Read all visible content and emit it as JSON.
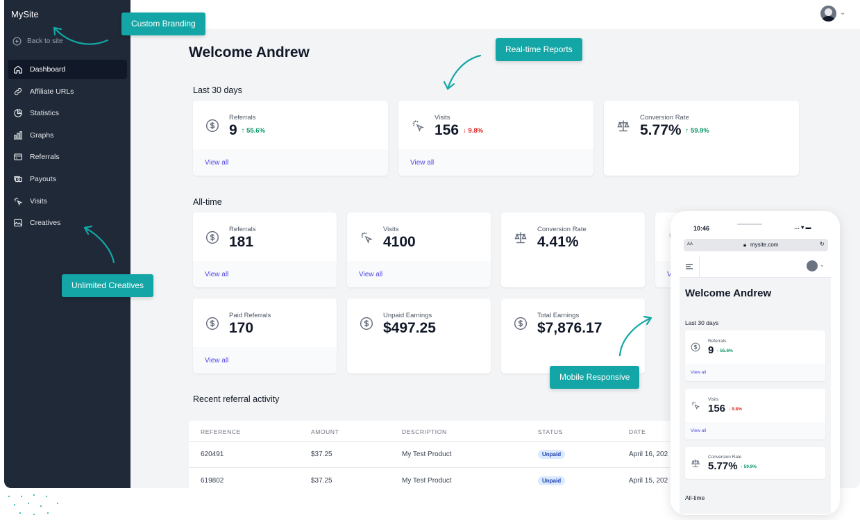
{
  "sidebar": {
    "brand": "MySite",
    "back_label": "Back to site",
    "items": [
      {
        "label": "Dashboard",
        "icon": "home-icon",
        "active": true
      },
      {
        "label": "Affiliate URLs",
        "icon": "link-icon"
      },
      {
        "label": "Statistics",
        "icon": "pie-chart-icon"
      },
      {
        "label": "Graphs",
        "icon": "bar-chart-icon"
      },
      {
        "label": "Referrals",
        "icon": "credit-card-icon"
      },
      {
        "label": "Payouts",
        "icon": "cash-icon"
      },
      {
        "label": "Visits",
        "icon": "cursor-click-icon"
      },
      {
        "label": "Creatives",
        "icon": "image-icon"
      }
    ]
  },
  "header": {
    "avatar": "user-avatar",
    "chevron": "⌄"
  },
  "main": {
    "title": "Welcome Andrew",
    "last30": {
      "title": "Last 30 days",
      "cards": [
        {
          "label": "Referrals",
          "value": "9",
          "change": "55.6%",
          "dir": "up",
          "link": "View all"
        },
        {
          "label": "Visits",
          "value": "156",
          "change": "9.8%",
          "dir": "down",
          "link": "View all"
        },
        {
          "label": "Conversion Rate",
          "value": "5.77%",
          "change": "59.9%",
          "dir": "up"
        }
      ]
    },
    "alltime": {
      "title": "All-time",
      "cards": [
        {
          "label": "Referrals",
          "value": "181",
          "link": "View all"
        },
        {
          "label": "Visits",
          "value": "4100",
          "link": "View all"
        },
        {
          "label": "Conversion Rate",
          "value": "4.41%"
        },
        {
          "label": "Paid Referrals",
          "value": "170",
          "link": "View all"
        },
        {
          "label": "Unpaid Earnings",
          "value": "$497.25"
        },
        {
          "label": "Total Earnings",
          "value": "$7,876.17"
        }
      ]
    },
    "recent": {
      "title": "Recent referral activity",
      "columns": [
        "REFERENCE",
        "AMOUNT",
        "DESCRIPTION",
        "STATUS",
        "DATE"
      ],
      "rows": [
        {
          "reference": "620491",
          "amount": "$37.25",
          "description": "My Test Product",
          "status": "Unpaid",
          "date": "April 16, 202"
        },
        {
          "reference": "619802",
          "amount": "$37.25",
          "description": "My Test Product",
          "status": "Unpaid",
          "date": "April 15, 202"
        }
      ]
    }
  },
  "callouts": {
    "branding": "Custom Branding",
    "reports": "Real-time Reports",
    "creatives": "Unlimited Creatives",
    "mobile": "Mobile Responsive"
  },
  "phone": {
    "time": "10:46",
    "aa": "AA",
    "url": "mysite.com",
    "title": "Welcome Andrew",
    "section": "Last 30 days",
    "section2": "All-time",
    "partial_link": "V",
    "cards": [
      {
        "label": "Referrals",
        "value": "9",
        "change": "55.6%",
        "dir": "up",
        "link": "View all"
      },
      {
        "label": "Visits",
        "value": "156",
        "change": "9.8%",
        "dir": "down",
        "link": "View all"
      },
      {
        "label": "Conversion Rate",
        "value": "5.77%",
        "change": "59.9%",
        "dir": "up"
      }
    ]
  },
  "colors": {
    "sidebar": "#1f2937",
    "accent": "#14a6a6",
    "link": "#4f46e5",
    "up": "#059669",
    "down": "#dc2626"
  }
}
